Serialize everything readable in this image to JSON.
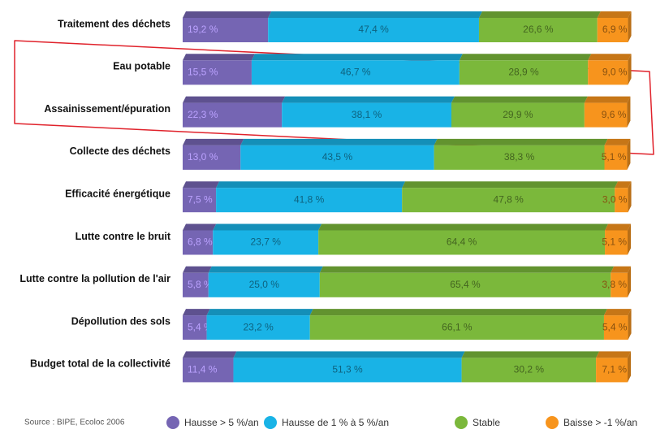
{
  "chart_data": {
    "type": "stacked-bar-horizontal",
    "categories": [
      "Traitement des déchets",
      "Eau potable",
      "Assainissement/épuration",
      "Collecte des déchets",
      "Efficacité énergétique",
      "Lutte contre le bruit",
      "Lutte contre la pollution de l'air",
      "Dépollution des sols",
      "Budget total de la collectivité"
    ],
    "series": [
      {
        "name": "Hausse > 5 %/an",
        "color": "#7565b3",
        "values": [
          19.2,
          15.5,
          22.3,
          13.0,
          7.5,
          6.8,
          5.8,
          5.4,
          11.4
        ],
        "value_labels": [
          "19,2 %",
          "15,5 %",
          "22,3 %",
          "13,0 %",
          "7,5 %",
          "6,8 %",
          "5,8 %",
          "5,4 %",
          "11,4 %"
        ]
      },
      {
        "name": "Hausse de 1 % à 5 %/an",
        "color": "#19b3e6",
        "values": [
          47.4,
          46.7,
          38.1,
          43.5,
          41.8,
          23.7,
          25.0,
          23.2,
          51.3
        ],
        "value_labels": [
          "47,4 %",
          "46,7 %",
          "38,1 %",
          "43,5 %",
          "41,8 %",
          "23,7 %",
          "25,0 %",
          "23,2 %",
          "51,3 %"
        ]
      },
      {
        "name": "Stable",
        "color": "#7bb83b",
        "values": [
          26.6,
          28.9,
          29.9,
          38.3,
          47.8,
          64.4,
          65.4,
          66.1,
          30.2
        ],
        "value_labels": [
          "26,6 %",
          "28,9 %",
          "29,9 %",
          "38,3 %",
          "47,8 %",
          "64,4 %",
          "65,4 %",
          "66,1 %",
          "30,2 %"
        ]
      },
      {
        "name": "Baisse > -1 %/an",
        "color": "#f7941d",
        "values": [
          6.9,
          9.0,
          9.6,
          5.1,
          3.0,
          5.1,
          3.8,
          5.4,
          7.1
        ],
        "value_labels": [
          "6,9 %",
          "9,0 %",
          "9,6 %",
          "5,1 %",
          "3,0 %",
          "5,1 %",
          "3,8 %",
          "5,4 %",
          "7,1 %"
        ]
      }
    ],
    "source": "Source : BIPE, Ecoloc 2006",
    "xlim": [
      0,
      100
    ]
  }
}
